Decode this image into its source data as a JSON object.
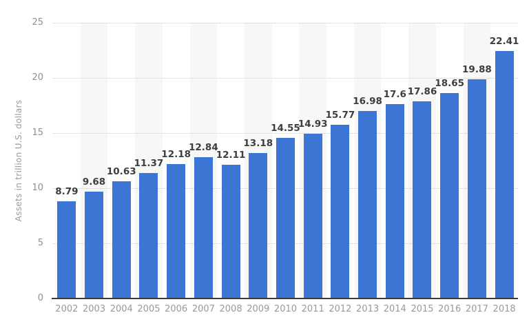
{
  "chart_data": {
    "type": "bar",
    "title": "",
    "xlabel": "",
    "ylabel": "Assets in trillion U.S. dollars",
    "categories": [
      "2002",
      "2003",
      "2004",
      "2005",
      "2006",
      "2007",
      "2008",
      "2009",
      "2010",
      "2011",
      "2012",
      "2013",
      "2014",
      "2015",
      "2016",
      "2017",
      "2018"
    ],
    "values": [
      8.79,
      9.68,
      10.63,
      11.37,
      12.18,
      12.84,
      12.11,
      13.18,
      14.55,
      14.93,
      15.77,
      16.98,
      17.6,
      17.86,
      18.65,
      19.88,
      22.41
    ],
    "value_labels": [
      "8.79",
      "9.68",
      "10.63",
      "11.37",
      "12.18",
      "12.84",
      "12.11",
      "13.18",
      "14.55",
      "14.93",
      "15.77",
      "16.98",
      "17.6",
      "17.86",
      "18.65",
      "19.88",
      "22.41"
    ],
    "ylim": [
      0,
      25
    ],
    "yticks": [
      0,
      5,
      10,
      15,
      20,
      25
    ],
    "grid": "horizontal-dotted",
    "legend": "none",
    "bar_color": "#3c75d3",
    "stripe_color": "#f7f7f7",
    "value_label_color": "#3d3d3d",
    "tick_label_color": "#909090",
    "axis_line_color": "#3a3a3a"
  }
}
